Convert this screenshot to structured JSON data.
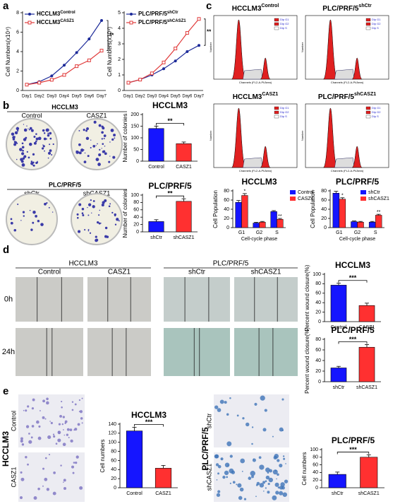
{
  "panel_labels": [
    "a",
    "b",
    "c",
    "d",
    "e"
  ],
  "colony": {
    "groups": [
      {
        "title": "HCCLM3",
        "labels": [
          "Control",
          "CASZ1"
        ]
      },
      {
        "title": "PLC/PRF/5",
        "labels": [
          "shCtr",
          "shCASZ1"
        ]
      }
    ]
  },
  "flow": {
    "plots": [
      {
        "name": "HCCLM3",
        "sup": "Control"
      },
      {
        "name": "PLC/PRF/5",
        "sup": "shCtr"
      },
      {
        "name": "HCCLM3",
        "sup": "CASZ1"
      },
      {
        "name": "PLC/PRF/5",
        "sup": "shCASZ1"
      }
    ],
    "legend": [
      "Dip G1",
      "Dip G2",
      "Dip S"
    ],
    "xlabel": "Channels (FL2-A-PI/Area)",
    "ylabel": "Number"
  },
  "wound": {
    "groups": [
      {
        "title": "HCCLM3",
        "labels": [
          "Control",
          "CASZ1"
        ]
      },
      {
        "title": "PLC/PRF/5",
        "labels": [
          "shCtr",
          "shCASZ1"
        ]
      }
    ],
    "times": [
      "0h",
      "24h"
    ]
  },
  "invasion": {
    "groups": [
      {
        "title": "HCCLM3",
        "labels": [
          "Control",
          "CASZ1"
        ]
      },
      {
        "title": "PLC/PRF/5",
        "labels": [
          "shCtr",
          "shCASZ1"
        ]
      }
    ]
  },
  "chart_data": [
    {
      "type": "line",
      "ylabel": "Cell Numbers(x10⁴)",
      "categories": [
        "Day1",
        "Day2",
        "Day3",
        "Day4",
        "Day5",
        "Day6",
        "Day7"
      ],
      "series": [
        {
          "name": "HCCLM3",
          "name_sup": "Control",
          "color": "#1c2a99",
          "marker": "circle",
          "values": [
            0.6,
            0.9,
            1.5,
            2.6,
            3.9,
            5.3,
            7.2
          ]
        },
        {
          "name": "HCCLM3",
          "name_sup": "CASZ1",
          "color": "#e03a3a",
          "marker": "square",
          "values": [
            0.6,
            0.8,
            1.1,
            1.6,
            2.5,
            3.1,
            4.1
          ]
        }
      ],
      "ylim": [
        0,
        8
      ],
      "yticks": [
        0,
        2,
        4,
        6,
        8
      ],
      "annotation": "**"
    },
    {
      "type": "line",
      "ylabel": "Cell Numbers(x10⁴)",
      "categories": [
        "Day1",
        "Day2",
        "Day3",
        "Day4",
        "Day5",
        "Day6",
        "Day7"
      ],
      "series": [
        {
          "name": "PLC/PRF/5",
          "name_sup": "shCtr",
          "color": "#1c2a99",
          "marker": "circle",
          "values": [
            0.5,
            0.7,
            1.0,
            1.4,
            1.9,
            2.5,
            2.9
          ]
        },
        {
          "name": "PLC/PRF/5",
          "name_sup": "shCASZ1",
          "color": "#e03a3a",
          "marker": "square",
          "values": [
            0.5,
            0.7,
            1.1,
            1.8,
            2.7,
            3.7,
            4.6
          ]
        }
      ],
      "ylim": [
        0,
        5
      ],
      "yticks": [
        0,
        1,
        2,
        3,
        4,
        5
      ],
      "annotation": "**"
    },
    {
      "type": "bar",
      "title": "HCCLM3",
      "ylabel": "Number of colonies",
      "categories": [
        "Control",
        "CASZ1"
      ],
      "values": [
        140,
        75
      ],
      "errors": [
        10,
        7
      ],
      "colors": [
        "#1515ff",
        "#ff3030"
      ],
      "ylim": [
        0,
        200
      ],
      "yticks": [
        0,
        50,
        100,
        150,
        200
      ],
      "annotation": "**"
    },
    {
      "type": "bar",
      "title": "PLC/PRF/5",
      "ylabel": "Number of colonies",
      "categories": [
        "shCtr",
        "shCASZ1"
      ],
      "values": [
        28,
        83
      ],
      "errors": [
        5,
        7
      ],
      "colors": [
        "#1515ff",
        "#ff3030"
      ],
      "ylim": [
        0,
        100
      ],
      "yticks": [
        0,
        20,
        40,
        60,
        80,
        100
      ],
      "annotation": "**"
    },
    {
      "type": "grouped_bar",
      "title": "HCCLM3",
      "ylabel": "Cell Population",
      "xlabel": "Cell-cycle phase",
      "categories": [
        "G1",
        "G2",
        "S"
      ],
      "series": [
        {
          "name": "Control",
          "color": "#1515ff",
          "values": [
            55,
            10,
            35
          ],
          "errors": [
            4,
            1.5,
            2
          ]
        },
        {
          "name": "CASZ1",
          "color": "#ff3030",
          "values": [
            70,
            12,
            18
          ],
          "errors": [
            4,
            1.5,
            2
          ]
        }
      ],
      "annotations": [
        "*",
        null,
        "**"
      ],
      "ylim": [
        0,
        80
      ],
      "yticks": [
        0,
        20,
        40,
        60,
        80
      ],
      "legend": "right"
    },
    {
      "type": "grouped_bar",
      "title": "PLC/PRF/5",
      "ylabel": "Cell Population",
      "xlabel": "Cell-cycle phase",
      "categories": [
        "G1",
        "G2",
        "S"
      ],
      "series": [
        {
          "name": "shCtr",
          "color": "#1515ff",
          "values": [
            75,
            13,
            12
          ],
          "errors": [
            4,
            1.5,
            1.5
          ]
        },
        {
          "name": "shCASZ1",
          "color": "#ff3030",
          "values": [
            62,
            12,
            27
          ],
          "errors": [
            3,
            1.5,
            2
          ]
        }
      ],
      "annotations": [
        "*",
        null,
        "**"
      ],
      "ylim": [
        0,
        80
      ],
      "yticks": [
        0,
        20,
        40,
        60,
        80
      ],
      "legend": "upper right"
    },
    {
      "type": "bar",
      "title": "HCCLM3",
      "ylabel": "Percent wound closure(%)",
      "categories": [
        "Control",
        "CASZ1"
      ],
      "values": [
        77,
        34
      ],
      "errors": [
        4,
        5
      ],
      "colors": [
        "#1515ff",
        "#ff3030"
      ],
      "ylim": [
        0,
        100
      ],
      "yticks": [
        0,
        20,
        40,
        60,
        80,
        100
      ],
      "annotation": "***"
    },
    {
      "type": "bar",
      "title": "PLC/PRF/5",
      "ylabel": "Percent wound closure(%)",
      "categories": [
        "shCtr",
        "shCASZ1"
      ],
      "values": [
        26,
        65
      ],
      "errors": [
        3,
        5
      ],
      "colors": [
        "#1515ff",
        "#ff3030"
      ],
      "ylim": [
        0,
        80
      ],
      "yticks": [
        0,
        20,
        40,
        60,
        80
      ],
      "annotation": "***"
    },
    {
      "type": "bar",
      "title": "HCCLM3",
      "ylabel": "Cell numbers",
      "categories": [
        "Control",
        "CASZ1"
      ],
      "values": [
        125,
        43
      ],
      "errors": [
        8,
        6
      ],
      "colors": [
        "#1515ff",
        "#ff3030"
      ],
      "ylim": [
        0,
        140
      ],
      "yticks": [
        0,
        20,
        40,
        60,
        80,
        100,
        120,
        140
      ],
      "annotation": "***"
    },
    {
      "type": "bar",
      "title": "PLC/PRF/5",
      "ylabel": "Cell numbers",
      "categories": [
        "shCtr",
        "shCASZ1"
      ],
      "values": [
        35,
        80
      ],
      "errors": [
        6,
        6
      ],
      "colors": [
        "#1515ff",
        "#ff3030"
      ],
      "ylim": [
        0,
        100
      ],
      "yticks": [
        0,
        20,
        40,
        60,
        80,
        100
      ],
      "annotation": "***"
    }
  ]
}
